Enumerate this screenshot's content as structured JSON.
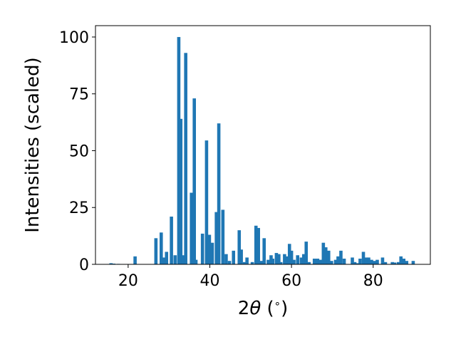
{
  "chart_data": {
    "type": "bar",
    "xlabel_main": "2",
    "xlabel_theta": "θ",
    "xlabel_unit": " (",
    "xlabel_degree": "∘",
    "xlabel_close": ")",
    "ylabel": "Intensities (scaled)",
    "xlim": [
      12,
      94
    ],
    "ylim": [
      0,
      105
    ],
    "xticks": [
      20,
      40,
      60,
      80
    ],
    "yticks": [
      0,
      25,
      50,
      75,
      100
    ],
    "grid": false,
    "legend": "none",
    "bar_color": "#1f77b4",
    "bar_width": 0.8,
    "x": [
      15.8,
      16.5,
      17.6,
      21.7,
      26.8,
      28.1,
      28.8,
      29.4,
      30.6,
      31.5,
      32.4,
      32.9,
      33.4,
      34.1,
      35.5,
      36.2,
      36.6,
      38.2,
      39.2,
      39.9,
      40.6,
      41.6,
      42.2,
      43.2,
      44.0,
      44.8,
      45.8,
      47.2,
      47.7,
      48.5,
      49.1,
      50.4,
      51.3,
      51.9,
      52.6,
      53.3,
      54.3,
      55.0,
      55.4,
      56.3,
      56.9,
      57.4,
      58.3,
      59.0,
      59.5,
      60.0,
      60.6,
      61.5,
      62.4,
      63.0,
      63.6,
      64.3,
      65.6,
      66.4,
      67.1,
      67.8,
      68.4,
      69.1,
      69.8,
      70.8,
      71.4,
      72.1,
      72.9,
      74.9,
      75.5,
      76.1,
      76.8,
      77.6,
      78.3,
      78.9,
      79.6,
      80.3,
      81.0,
      82.3,
      83.0,
      84.7,
      85.3,
      86.2,
      86.8,
      87.5,
      88.2,
      89.8
    ],
    "values": [
      0.5,
      0.3,
      0.2,
      3.5,
      11.5,
      14.0,
      3.0,
      5.5,
      21.0,
      4.0,
      100.0,
      64.0,
      4.0,
      93.0,
      31.5,
      73.0,
      2.0,
      13.5,
      54.5,
      13.0,
      9.5,
      23.0,
      62.0,
      24.0,
      4.5,
      1.5,
      6.0,
      15.0,
      6.5,
      1.0,
      3.0,
      1.0,
      17.0,
      16.0,
      1.5,
      11.5,
      2.0,
      4.0,
      2.5,
      5.0,
      4.5,
      1.0,
      4.5,
      3.5,
      9.0,
      6.0,
      2.0,
      4.0,
      3.0,
      4.5,
      10.0,
      1.0,
      2.5,
      2.5,
      2.0,
      9.5,
      7.5,
      6.0,
      1.5,
      2.0,
      3.5,
      6.0,
      2.5,
      3.0,
      1.0,
      0.5,
      2.5,
      5.5,
      3.0,
      3.0,
      2.0,
      1.5,
      2.0,
      3.0,
      1.0,
      1.0,
      0.8,
      1.0,
      3.5,
      2.5,
      1.5,
      1.5
    ]
  }
}
